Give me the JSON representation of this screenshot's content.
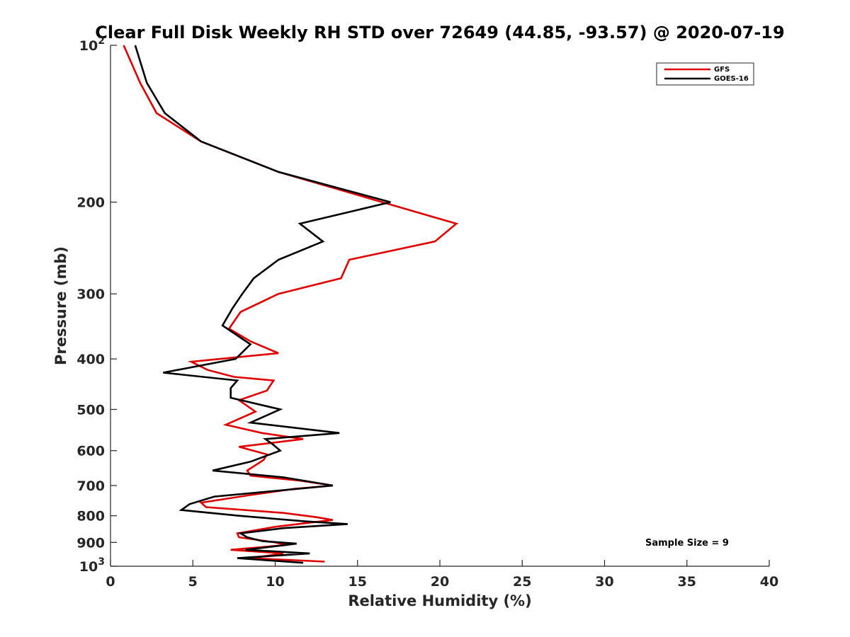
{
  "chart_data": {
    "type": "line",
    "title": "Clear Full Disk Weekly RH STD over 72649 (44.85, -93.57) @ 2020-07-19",
    "xlabel": "Relative Humidity (%)",
    "ylabel": "Pressure (mb)",
    "xlim": [
      0,
      40
    ],
    "ylim": [
      100,
      1000
    ],
    "y_scale": "log",
    "y_reversed": true,
    "grid": false,
    "legend_position": "top-right",
    "x_ticks": [
      "0",
      "5",
      "10",
      "15",
      "20",
      "25",
      "30",
      "35",
      "40"
    ],
    "y_ticks": [
      {
        "value": 100,
        "base": "10",
        "exp": "2"
      },
      {
        "value": 200,
        "label": "200"
      },
      {
        "value": 300,
        "label": "300"
      },
      {
        "value": 400,
        "label": "400"
      },
      {
        "value": 500,
        "label": "500"
      },
      {
        "value": 600,
        "label": "600"
      },
      {
        "value": 700,
        "label": "700"
      },
      {
        "value": 800,
        "label": "800"
      },
      {
        "value": 900,
        "label": "900"
      },
      {
        "value": 1000,
        "base": "10",
        "exp": "3"
      }
    ],
    "annotation": "Sample Size = 9",
    "series": [
      {
        "name": "GFS",
        "color": "#e00000",
        "points": [
          [
            0.8,
            100
          ],
          [
            1.8,
            118
          ],
          [
            2.8,
            135
          ],
          [
            5.5,
            153
          ],
          [
            10.2,
            175
          ],
          [
            16.5,
            200
          ],
          [
            21.0,
            220
          ],
          [
            19.7,
            238
          ],
          [
            14.5,
            258
          ],
          [
            14.0,
            280
          ],
          [
            10.2,
            300
          ],
          [
            7.9,
            325
          ],
          [
            7.2,
            350
          ],
          [
            8.5,
            370
          ],
          [
            10.2,
            390
          ],
          [
            4.9,
            405
          ],
          [
            5.9,
            420
          ],
          [
            7.5,
            433
          ],
          [
            9.9,
            440
          ],
          [
            9.5,
            460
          ],
          [
            7.8,
            480
          ],
          [
            8.8,
            505
          ],
          [
            7.0,
            535
          ],
          [
            9.2,
            555
          ],
          [
            11.7,
            570
          ],
          [
            7.8,
            590
          ],
          [
            9.5,
            610
          ],
          [
            9.3,
            625
          ],
          [
            8.3,
            655
          ],
          [
            8.5,
            670
          ],
          [
            11.5,
            685
          ],
          [
            13.5,
            700
          ],
          [
            11.2,
            710
          ],
          [
            8.5,
            730
          ],
          [
            5.5,
            755
          ],
          [
            5.8,
            770
          ],
          [
            10.5,
            790
          ],
          [
            12.5,
            805
          ],
          [
            13.5,
            815
          ],
          [
            10.0,
            840
          ],
          [
            7.7,
            865
          ],
          [
            7.8,
            880
          ],
          [
            10.0,
            900
          ],
          [
            10.7,
            910
          ],
          [
            7.3,
            930
          ],
          [
            10.5,
            945
          ],
          [
            8.5,
            965
          ],
          [
            13.0,
            980
          ]
        ]
      },
      {
        "name": "GOES-16",
        "color": "#000000",
        "points": [
          [
            1.5,
            100
          ],
          [
            2.2,
            118
          ],
          [
            3.3,
            135
          ],
          [
            5.5,
            153
          ],
          [
            10.2,
            175
          ],
          [
            17.0,
            200
          ],
          [
            11.5,
            220
          ],
          [
            12.9,
            238
          ],
          [
            10.2,
            258
          ],
          [
            8.7,
            280
          ],
          [
            8.0,
            300
          ],
          [
            7.4,
            320
          ],
          [
            6.8,
            345
          ],
          [
            8.5,
            375
          ],
          [
            7.6,
            400
          ],
          [
            3.2,
            425
          ],
          [
            7.7,
            440
          ],
          [
            7.3,
            455
          ],
          [
            7.3,
            475
          ],
          [
            10.3,
            500
          ],
          [
            8.5,
            530
          ],
          [
            13.9,
            555
          ],
          [
            9.4,
            570
          ],
          [
            9.9,
            585
          ],
          [
            10.3,
            600
          ],
          [
            8.5,
            630
          ],
          [
            6.2,
            655
          ],
          [
            10.5,
            675
          ],
          [
            13.5,
            700
          ],
          [
            6.3,
            735
          ],
          [
            4.8,
            760
          ],
          [
            4.3,
            780
          ],
          [
            7.8,
            800
          ],
          [
            11.8,
            820
          ],
          [
            14.4,
            830
          ],
          [
            10.5,
            845
          ],
          [
            7.9,
            865
          ],
          [
            8.3,
            880
          ],
          [
            9.2,
            895
          ],
          [
            11.3,
            905
          ],
          [
            8.2,
            930
          ],
          [
            12.1,
            945
          ],
          [
            7.7,
            965
          ],
          [
            11.7,
            985
          ]
        ]
      }
    ]
  }
}
